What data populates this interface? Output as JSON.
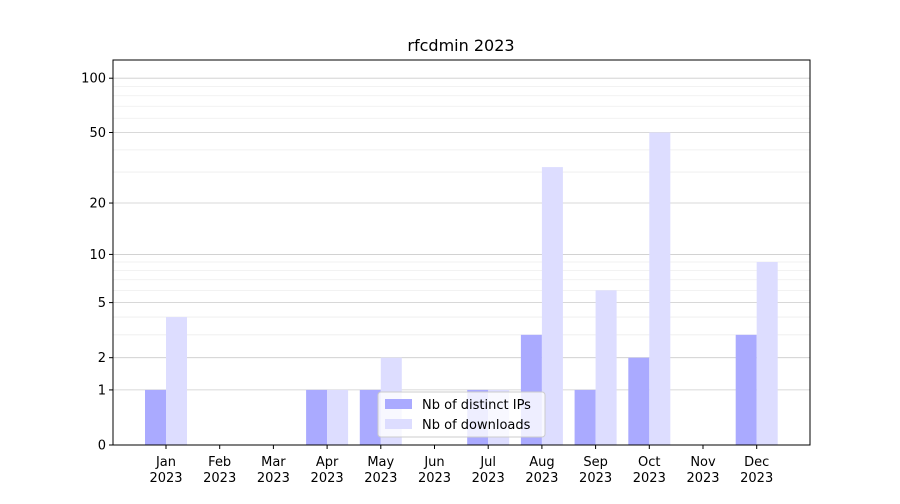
{
  "chart_data": {
    "type": "bar",
    "title": "rfcdmin 2023",
    "categories": [
      "Jan\n2023",
      "Feb\n2023",
      "Mar\n2023",
      "Apr\n2023",
      "May\n2023",
      "Jun\n2023",
      "Jul\n2023",
      "Aug\n2023",
      "Sep\n2023",
      "Oct\n2023",
      "Nov\n2023",
      "Dec\n2023"
    ],
    "series": [
      {
        "name": "Nb of distinct IPs",
        "color": "#aaaaff",
        "values": [
          1,
          0,
          0,
          1,
          1,
          0,
          1,
          3,
          1,
          2,
          0,
          3
        ]
      },
      {
        "name": "Nb of downloads",
        "color": "#ddddff",
        "values": [
          4,
          0,
          0,
          1,
          2,
          0,
          1,
          32,
          6,
          50,
          0,
          9
        ]
      }
    ],
    "yscale": "log1p",
    "ylim": [
      0,
      126
    ],
    "yticks": [
      0,
      1,
      2,
      5,
      10,
      20,
      50,
      100
    ],
    "minor_yticks": [
      3,
      4,
      6,
      7,
      8,
      9,
      30,
      40,
      60,
      70,
      80,
      90
    ],
    "grid": true,
    "legend": "lower center"
  }
}
